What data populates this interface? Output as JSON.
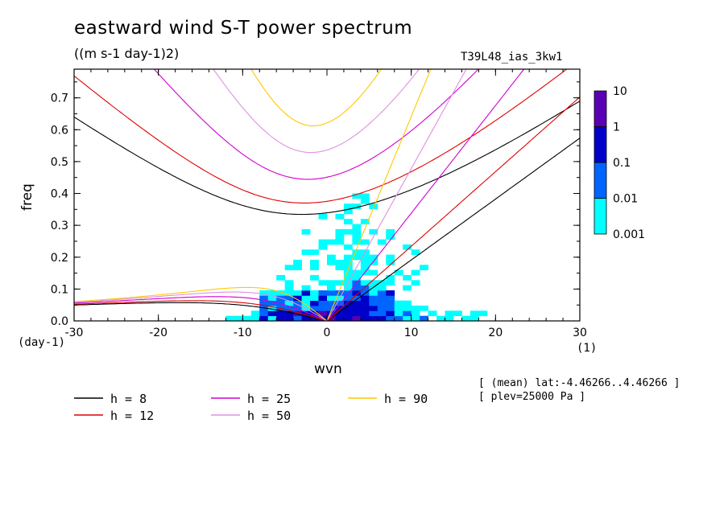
{
  "header": {
    "title": "eastward wind S-T power spectrum",
    "units": "((m s-1 day-1)2)",
    "experiment": "T39L48_ias_3kw1"
  },
  "annotations": {
    "mean_lat": "[ (mean) lat:-4.46266..4.46266 ]",
    "plev": "[ plev=25000 Pa ]",
    "y_unit": "(day-1)",
    "x_unit": "(1)"
  },
  "chart_data": {
    "type": "heatmap",
    "title": "eastward wind S-T power spectrum",
    "xlabel": "wvn",
    "ylabel": "freq",
    "xlim": [
      -30,
      30
    ],
    "ylim": [
      0,
      0.79
    ],
    "xticks": [
      -30,
      -20,
      -10,
      0,
      10,
      20,
      30
    ],
    "xtick_labels": [
      "-30",
      "-20",
      "-10",
      "0",
      "10",
      "20",
      "30"
    ],
    "yticks": [
      0,
      0.1,
      0.2,
      0.3,
      0.4,
      0.5,
      0.6,
      0.7
    ],
    "ytick_labels": [
      "0.0",
      "0.1",
      "0.2",
      "0.3",
      "0.4",
      "0.5",
      "0.6",
      "0.7"
    ],
    "grid": false,
    "colorbar": {
      "levels": [
        0.001,
        0.01,
        0.1,
        1,
        10
      ],
      "labels": [
        "0.001",
        "0.01",
        "0.1",
        "1",
        "10"
      ],
      "colors": [
        "#00ffff",
        "#0064ff",
        "#0000c8",
        "#5a00b4"
      ]
    },
    "dispersion_curves": [
      {
        "name": "h = 8",
        "h": 8,
        "color": "#000000"
      },
      {
        "name": "h = 12",
        "h": 12,
        "color": "#e00000"
      },
      {
        "name": "h = 25",
        "h": 25,
        "color": "#d000d0"
      },
      {
        "name": "h = 50",
        "h": 50,
        "color": "#e090e0"
      },
      {
        "name": "h = 90",
        "h": 90,
        "color": "#ffc800"
      }
    ]
  }
}
